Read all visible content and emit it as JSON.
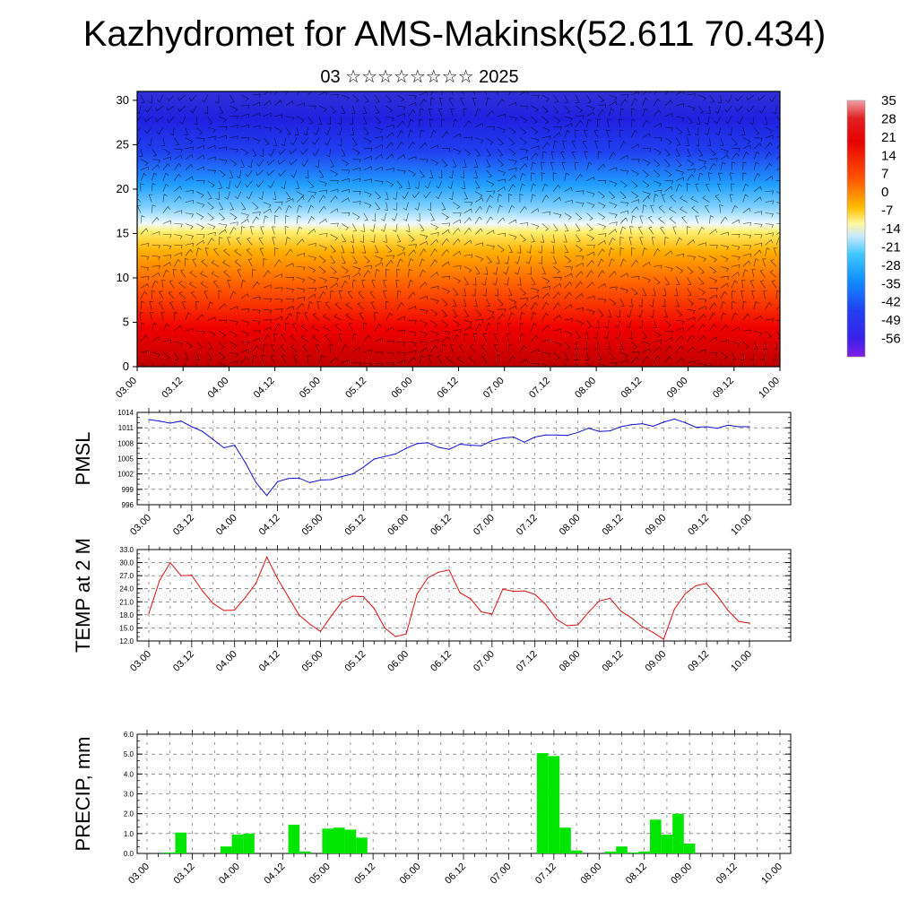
{
  "title": "Kazhydromet for AMS-Makinsk(52.611 70.434)",
  "subtitle": "03 ☆☆☆☆☆☆☆☆ 2025",
  "colors": {
    "pmsl_line": "#1010d0",
    "temp_line": "#e01010",
    "precip_bar": "#00e600",
    "wind_barb": "#000000"
  },
  "chart_data": [
    {
      "type": "heatmap",
      "description_key": "cross_section",
      "x_ticks": [
        "03.00",
        "03.12",
        "04.00",
        "04.12",
        "05.00",
        "05.12",
        "06.00",
        "06.12",
        "07.00",
        "07.12",
        "08.00",
        "08.12",
        "09.00",
        "09.12",
        "10.00"
      ],
      "y_ticks": [
        "0",
        "5",
        "10",
        "15",
        "20",
        "25",
        "30"
      ],
      "ylim": [
        0,
        31
      ],
      "colorbar_labels": [
        "35",
        "28",
        "21",
        "14",
        "7",
        "0",
        "-7",
        "-14",
        "-21",
        "-28",
        "-35",
        "-42",
        "-49",
        "-56"
      ],
      "colorbar_range": [
        -63,
        35
      ],
      "overlay": "wind barbs"
    },
    {
      "type": "line",
      "ylabel": "PMSL",
      "y_ticks": [
        "1014",
        "1011",
        "1008",
        "1005",
        "1002",
        "999",
        "996"
      ],
      "ylim": [
        996,
        1014
      ],
      "x_ticks": [
        "03.00",
        "03.12",
        "04.00",
        "04.12",
        "05.00",
        "05.12",
        "06.00",
        "06.12",
        "07.00",
        "07.12",
        "08.00",
        "08.12",
        "09.00",
        "09.12",
        "10.00"
      ],
      "x": [
        0,
        3,
        6,
        9,
        12,
        15,
        18,
        21,
        24,
        27,
        30,
        33,
        36,
        39,
        42,
        45,
        48,
        51,
        54,
        57,
        60,
        63,
        66,
        69,
        72,
        75,
        78,
        81,
        84,
        87,
        90,
        93,
        96,
        99,
        102,
        105,
        108,
        111,
        114,
        117,
        120,
        123,
        126,
        129,
        132,
        135,
        138,
        141,
        144,
        147,
        150,
        153,
        156,
        159,
        162,
        165,
        168
      ],
      "values": [
        1012.6,
        1012.3,
        1011.9,
        1012.3,
        1011.2,
        1010.3,
        1008.7,
        1007.1,
        1007.6,
        1004.2,
        1000.3,
        997.8,
        1000.5,
        1001.1,
        1001.2,
        1000.3,
        1000.8,
        1000.9,
        1001.5,
        1002.0,
        1003.3,
        1004.9,
        1005.4,
        1005.9,
        1007.0,
        1007.9,
        1008.1,
        1007.2,
        1006.8,
        1007.8,
        1007.6,
        1007.5,
        1008.5,
        1009.0,
        1009.2,
        1008.2,
        1009.2,
        1009.6,
        1009.6,
        1009.5,
        1010.1,
        1010.9,
        1010.3,
        1010.4,
        1011.2,
        1011.6,
        1011.8,
        1011.3,
        1012.1,
        1012.7,
        1012.0,
        1011.1,
        1011.2,
        1010.9,
        1011.5,
        1011.2,
        1011.2
      ]
    },
    {
      "type": "line",
      "ylabel": "TEMP at 2 M",
      "y_ticks": [
        "33.0",
        "30.0",
        "27.0",
        "24.0",
        "21.0",
        "18.0",
        "15.0",
        "12.0"
      ],
      "ylim": [
        12,
        33
      ],
      "x_ticks": [
        "03.00",
        "03.12",
        "04.00",
        "04.12",
        "05.00",
        "05.12",
        "06.00",
        "06.12",
        "07.00",
        "07.12",
        "08.00",
        "08.12",
        "09.00",
        "09.12",
        "10.00"
      ],
      "x": [
        0,
        3,
        6,
        9,
        12,
        15,
        18,
        21,
        24,
        27,
        30,
        33,
        36,
        39,
        42,
        45,
        48,
        51,
        54,
        57,
        60,
        63,
        66,
        69,
        72,
        75,
        78,
        81,
        84,
        87,
        90,
        93,
        96,
        99,
        102,
        105,
        108,
        111,
        114,
        117,
        120,
        123,
        126,
        129,
        132,
        135,
        138,
        141,
        144,
        147,
        150,
        153,
        156,
        159,
        162,
        165,
        168
      ],
      "values": [
        18.3,
        25.9,
        30.0,
        27.0,
        27.1,
        23.5,
        20.6,
        19.0,
        19.1,
        22.0,
        25.3,
        31.3,
        26.3,
        22.2,
        18.0,
        15.9,
        14.2,
        17.7,
        21.0,
        22.3,
        22.2,
        19.5,
        15.0,
        13.0,
        13.6,
        22.7,
        26.5,
        27.8,
        28.3,
        23.1,
        21.7,
        18.7,
        18.2,
        23.9,
        23.4,
        23.5,
        22.7,
        20.4,
        17.0,
        15.5,
        15.7,
        18.6,
        21.2,
        21.8,
        18.9,
        17.3,
        15.3,
        14.0,
        12.4,
        19.3,
        22.8,
        24.7,
        25.2,
        22.4,
        19.0,
        16.5,
        16.1
      ]
    },
    {
      "type": "bar",
      "ylabel": "PRECIP, mm",
      "y_ticks": [
        "6.0",
        "5.0",
        "4.0",
        "3.0",
        "2.0",
        "1.0",
        "0.0"
      ],
      "ylim": [
        0,
        6
      ],
      "x_ticks": [
        "03.00",
        "03.12",
        "04.00",
        "04.12",
        "05.00",
        "05.12",
        "06.00",
        "06.12",
        "07.00",
        "07.12",
        "08.00",
        "08.12",
        "09.00",
        "09.12",
        "10.00"
      ],
      "x": [
        6,
        9,
        21,
        24,
        27,
        39,
        42,
        48,
        51,
        54,
        57,
        105,
        108,
        111,
        114,
        123,
        126,
        129,
        132,
        135,
        138,
        141,
        144,
        147
      ],
      "values": [
        0.05,
        1.05,
        0.35,
        0.95,
        1.0,
        1.45,
        0.1,
        1.25,
        1.3,
        1.2,
        0.8,
        5.05,
        4.9,
        1.3,
        0.15,
        0.1,
        0.35,
        0.05,
        0.1,
        1.7,
        0.95,
        2.0,
        0.5,
        0.0
      ]
    }
  ]
}
